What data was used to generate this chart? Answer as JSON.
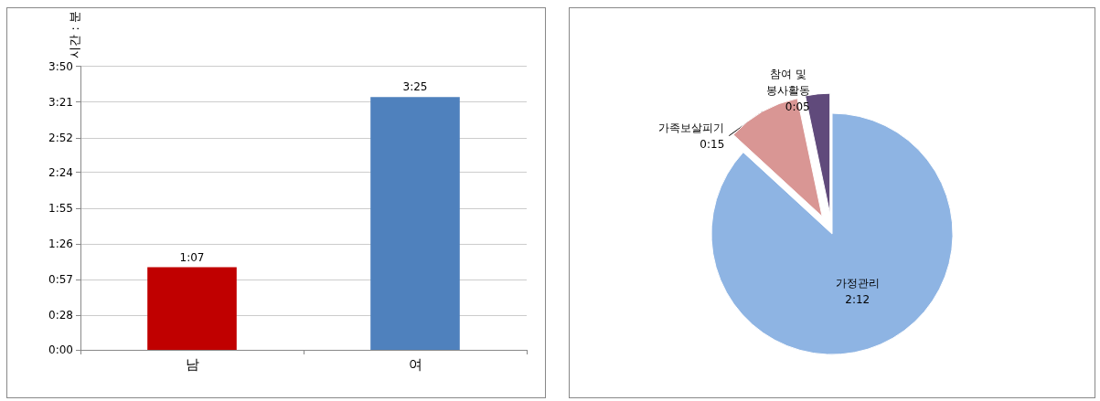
{
  "chart_data": [
    {
      "type": "bar",
      "ylabel": "시간 : 분",
      "categories": [
        "남",
        "여"
      ],
      "values": [
        67,
        205
      ],
      "value_labels": [
        "1:07",
        "3:25"
      ],
      "colors": [
        "#c00000",
        "#4f81bd"
      ],
      "ylim": [
        0,
        230
      ],
      "yticks": [
        {
          "value": 0,
          "label": "0:00"
        },
        {
          "value": 28,
          "label": "0:28"
        },
        {
          "value": 57,
          "label": "0:57"
        },
        {
          "value": 86,
          "label": "1:26"
        },
        {
          "value": 115,
          "label": "1:55"
        },
        {
          "value": 144,
          "label": "2:24"
        },
        {
          "value": 172,
          "label": "2:52"
        },
        {
          "value": 201,
          "label": "3:21"
        },
        {
          "value": 230,
          "label": "3:50"
        }
      ],
      "grid": "y",
      "legend": false
    },
    {
      "type": "pie",
      "categories": [
        "가정관리",
        "가족보살피기",
        "참여 및 봉사활동"
      ],
      "values": [
        132,
        15,
        5
      ],
      "value_labels": [
        "2:12",
        "0:15",
        "0:05"
      ],
      "colors": [
        "#8eb4e3",
        "#d99694",
        "#604a7b"
      ],
      "legend": false
    }
  ]
}
